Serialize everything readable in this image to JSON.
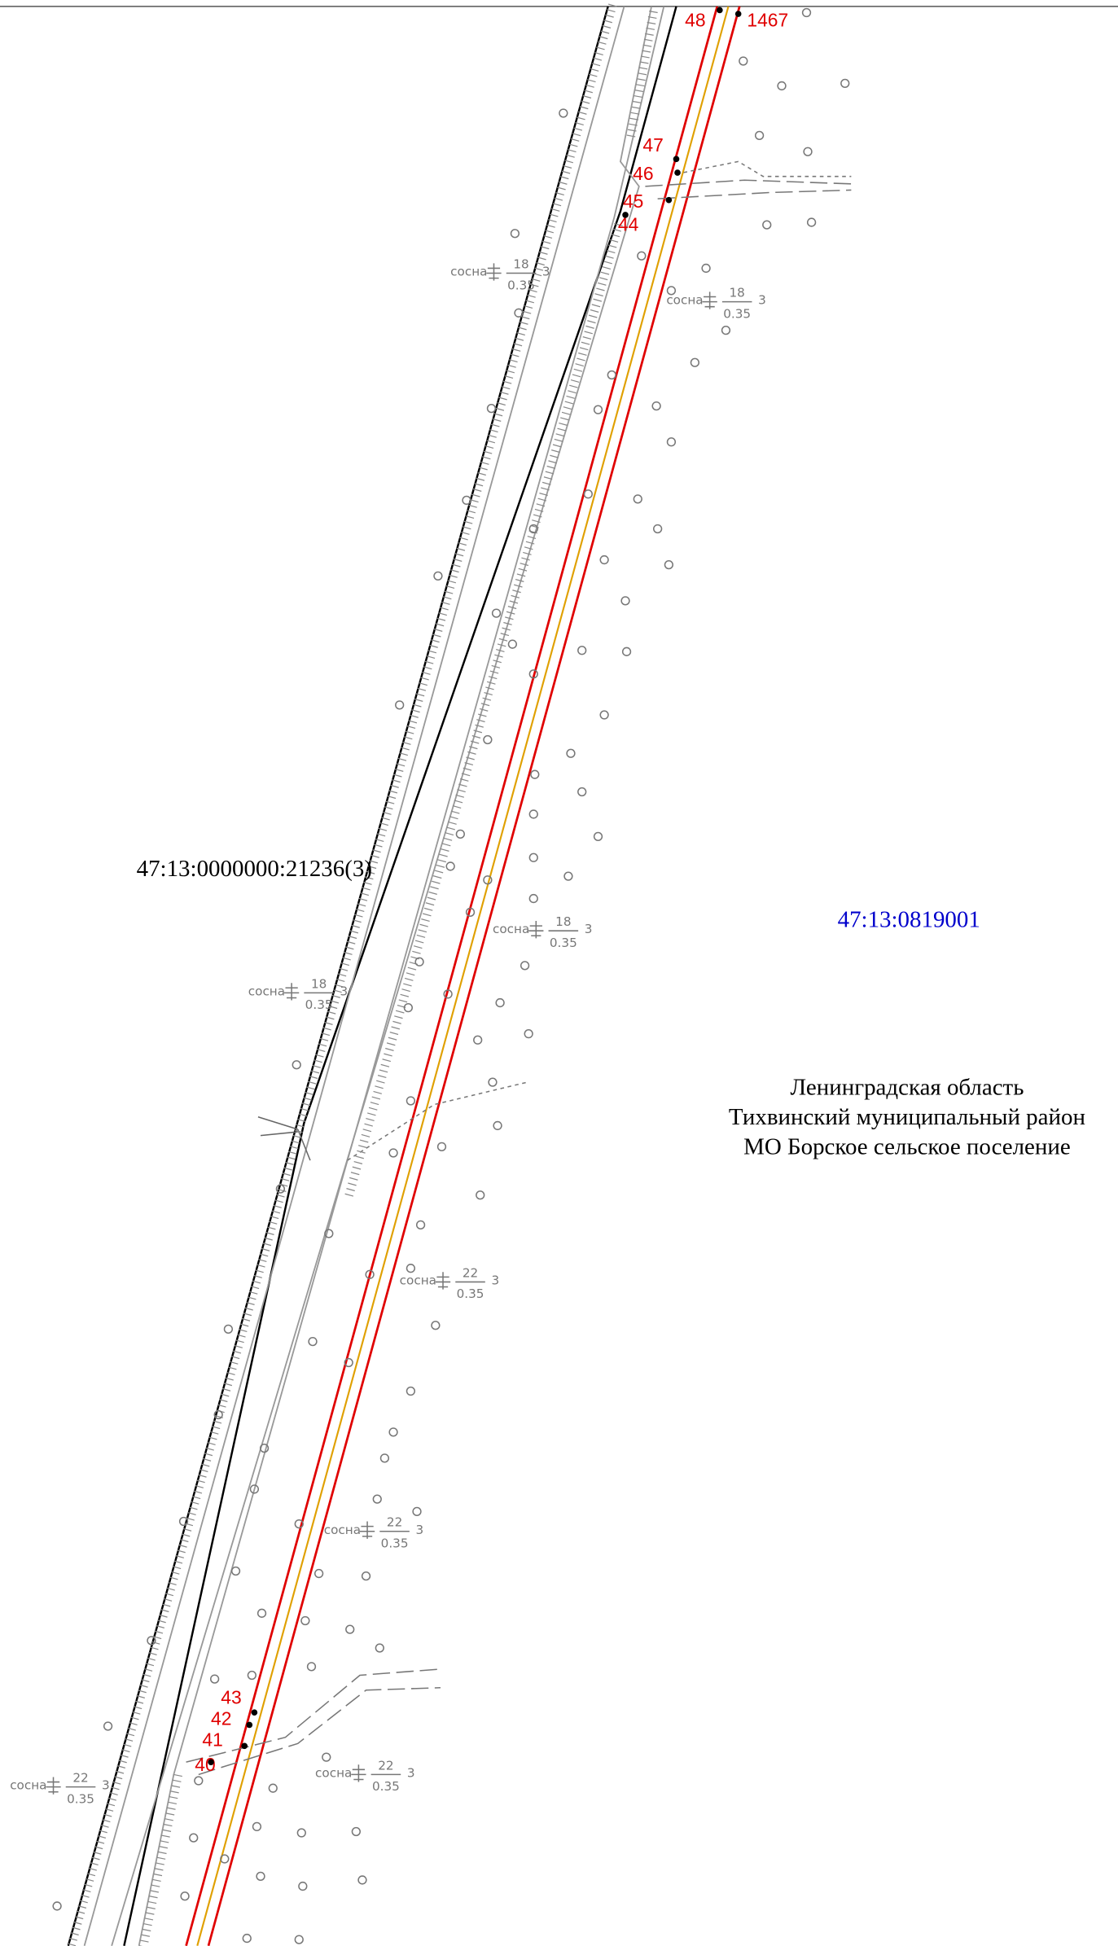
{
  "points": [
    "48",
    "1467",
    "47",
    "46",
    "45",
    "44",
    "43",
    "42",
    "41",
    "40"
  ],
  "parcels": {
    "road": "47:13:0000000:21236(3)",
    "quarter": "47:13:0819001"
  },
  "address": [
    "Ленинградская область",
    "Тихвинский муниципальный район",
    "МО Борское сельское поселение"
  ],
  "trees": [
    {
      "species": "сосна",
      "height": "18",
      "diameter": "0.35",
      "count": "3"
    },
    {
      "species": "сосна",
      "height": "18",
      "diameter": "0.35",
      "count": "3"
    },
    {
      "species": "сосна",
      "height": "18",
      "diameter": "0.35",
      "count": "3"
    },
    {
      "species": "сосна",
      "height": "18",
      "diameter": "0.35",
      "count": "3"
    },
    {
      "species": "сосна",
      "height": "22",
      "diameter": "0.35",
      "count": "3"
    },
    {
      "species": "сосна",
      "height": "22",
      "diameter": "0.35",
      "count": "3"
    },
    {
      "species": "сосна",
      "height": "22",
      "diameter": "0.35",
      "count": "3"
    },
    {
      "species": "сосна",
      "height": "22",
      "diameter": "0.35",
      "count": "3"
    }
  ]
}
